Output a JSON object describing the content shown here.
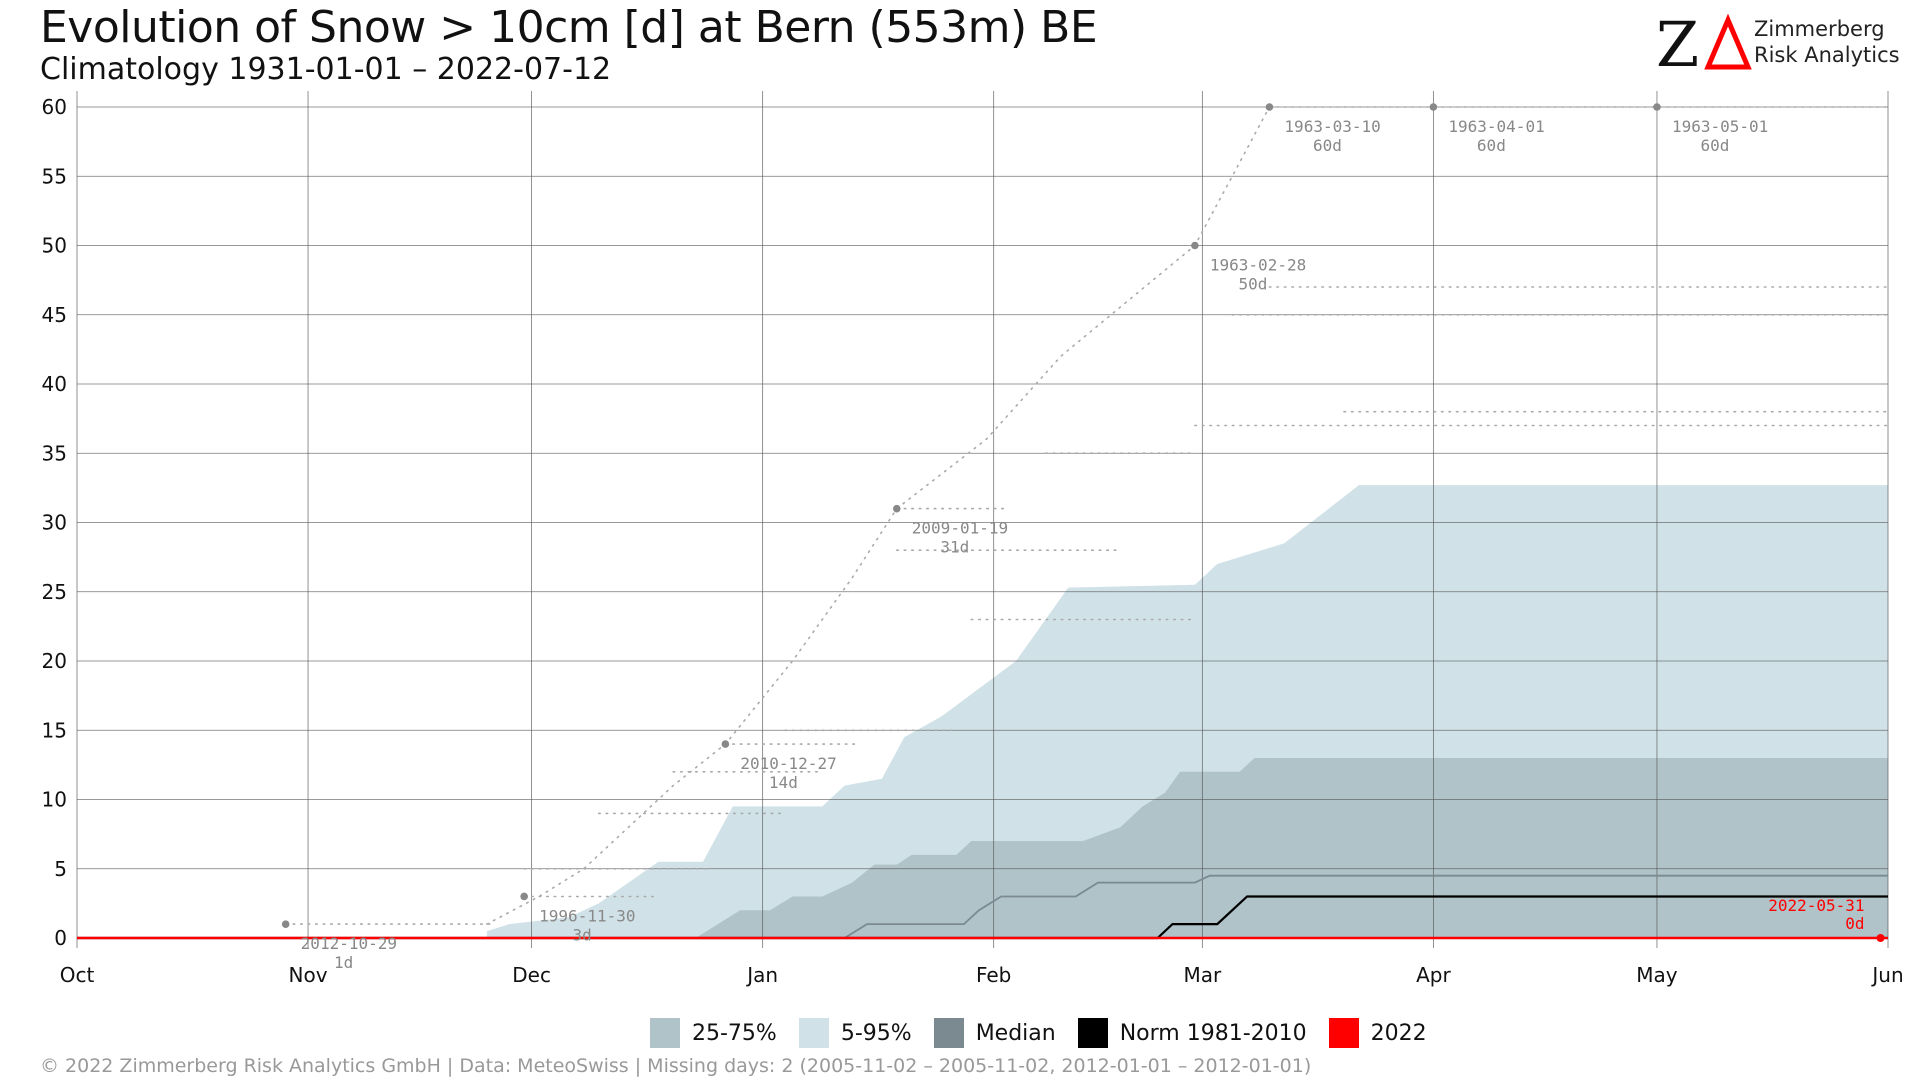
{
  "header": {
    "title": "Evolution of Snow > 10cm [d] at Bern (553m) BE",
    "subtitle": "Climatology 1931-01-01 – 2022-07-12"
  },
  "logo": {
    "mark": "ZΔ",
    "line1": "Zimmerberg",
    "line2": "Risk Analytics"
  },
  "footer": {
    "text": "©  2022 Zimmerberg Risk Analytics GmbH | Data: MeteoSwiss | Missing days: 2 (2005-11-02 – 2005-11-02, 2012-01-01 – 2012-01-01)"
  },
  "colors": {
    "band_25_75": "#b0c3c9",
    "band_5_95": "#d0e2e8",
    "median": "#7a8a90",
    "norm": "#000000",
    "current": "#ff0000",
    "record": "#888888",
    "grid": "#555555"
  },
  "legend": [
    {
      "label": "25-75%",
      "color": "#b0c3c9"
    },
    {
      "label": "5-95%",
      "color": "#d0e2e8"
    },
    {
      "label": "Median",
      "color": "#7a8a90"
    },
    {
      "label": "Norm 1981-2010",
      "color": "#000000"
    },
    {
      "label": "2022",
      "color": "#ff0000"
    }
  ],
  "chart_data": {
    "type": "area",
    "x_unit": "day of season (0 = Oct 1)",
    "xlim": [
      0,
      243
    ],
    "ylim": [
      0,
      62
    ],
    "grid": true,
    "y_ticks": [
      0,
      5,
      10,
      15,
      20,
      25,
      30,
      35,
      40,
      45,
      50,
      55,
      60
    ],
    "x_ticks": [
      {
        "day": 0,
        "label": "Oct"
      },
      {
        "day": 31,
        "label": "Nov"
      },
      {
        "day": 61,
        "label": "Dec"
      },
      {
        "day": 92,
        "label": "Jan"
      },
      {
        "day": 123,
        "label": "Feb"
      },
      {
        "day": 151,
        "label": "Mar"
      },
      {
        "day": 182,
        "label": "Apr"
      },
      {
        "day": 212,
        "label": "May"
      },
      {
        "day": 243,
        "label": "Jun"
      }
    ],
    "series": [
      {
        "name": "5-95%",
        "kind": "band",
        "lower": [
          [
            0,
            0
          ],
          [
            174,
            0
          ],
          [
            175,
            0.8
          ],
          [
            243,
            0.8
          ]
        ],
        "upper": [
          [
            0,
            0
          ],
          [
            55,
            0
          ],
          [
            55,
            0.5
          ],
          [
            58,
            1
          ],
          [
            66,
            1.5
          ],
          [
            70,
            2.5
          ],
          [
            74,
            4
          ],
          [
            78,
            5.5
          ],
          [
            84,
            5.5
          ],
          [
            88,
            9.5
          ],
          [
            100,
            9.5
          ],
          [
            103,
            11
          ],
          [
            108,
            11.5
          ],
          [
            111,
            14.5
          ],
          [
            116,
            16
          ],
          [
            126,
            20
          ],
          [
            133,
            25.3
          ],
          [
            150,
            25.5
          ],
          [
            153,
            27
          ],
          [
            162,
            28.5
          ],
          [
            172,
            32.7
          ],
          [
            243,
            32.7
          ]
        ]
      },
      {
        "name": "25-75%",
        "kind": "band",
        "lower": [
          [
            0,
            0
          ],
          [
            243,
            0
          ]
        ],
        "upper": [
          [
            0,
            0
          ],
          [
            83,
            0
          ],
          [
            86,
            1
          ],
          [
            89,
            2
          ],
          [
            93,
            2
          ],
          [
            96,
            3
          ],
          [
            100,
            3
          ],
          [
            104,
            4
          ],
          [
            107,
            5.3
          ],
          [
            110,
            5.3
          ],
          [
            112,
            6
          ],
          [
            118,
            6
          ],
          [
            120,
            7
          ],
          [
            135,
            7
          ],
          [
            140,
            8
          ],
          [
            143,
            9.5
          ],
          [
            146,
            10.5
          ],
          [
            148,
            12
          ],
          [
            156,
            12
          ],
          [
            158,
            13
          ],
          [
            243,
            13
          ]
        ]
      },
      {
        "name": "Median",
        "kind": "line",
        "points": [
          [
            0,
            0
          ],
          [
            103,
            0
          ],
          [
            106,
            1
          ],
          [
            119,
            1
          ],
          [
            121,
            2
          ],
          [
            124,
            3
          ],
          [
            134,
            3
          ],
          [
            137,
            4
          ],
          [
            150,
            4
          ],
          [
            152,
            4.5
          ],
          [
            243,
            4.5
          ]
        ]
      },
      {
        "name": "Norm 1981-2010",
        "kind": "line",
        "points": [
          [
            0,
            0
          ],
          [
            145,
            0
          ],
          [
            147,
            1
          ],
          [
            153,
            1
          ],
          [
            157,
            3
          ],
          [
            243,
            3
          ]
        ]
      },
      {
        "name": "2022",
        "kind": "line",
        "points": [
          [
            0,
            0
          ],
          [
            243,
            0
          ]
        ]
      }
    ],
    "records": [
      {
        "date": "2012-10-29",
        "day": 28,
        "value": 1,
        "label": "1d"
      },
      {
        "date": "1996-11-30",
        "day": 60,
        "value": 3,
        "label": "3d"
      },
      {
        "date": "2010-12-27",
        "day": 87,
        "value": 14,
        "label": "14d"
      },
      {
        "date": "2009-01-19",
        "day": 110,
        "value": 31,
        "label": "31d"
      },
      {
        "date": "1963-02-28",
        "day": 150,
        "value": 50,
        "label": "50d"
      },
      {
        "date": "1963-03-10",
        "day": 160,
        "value": 60,
        "label": "60d"
      },
      {
        "date": "1963-04-01",
        "day": 182,
        "value": 60,
        "label": "60d"
      },
      {
        "date": "1963-05-01",
        "day": 212,
        "value": 60,
        "label": "60d"
      }
    ],
    "current_label": {
      "date": "2022-05-31",
      "day": 242,
      "value": 0,
      "label": "0d"
    }
  }
}
